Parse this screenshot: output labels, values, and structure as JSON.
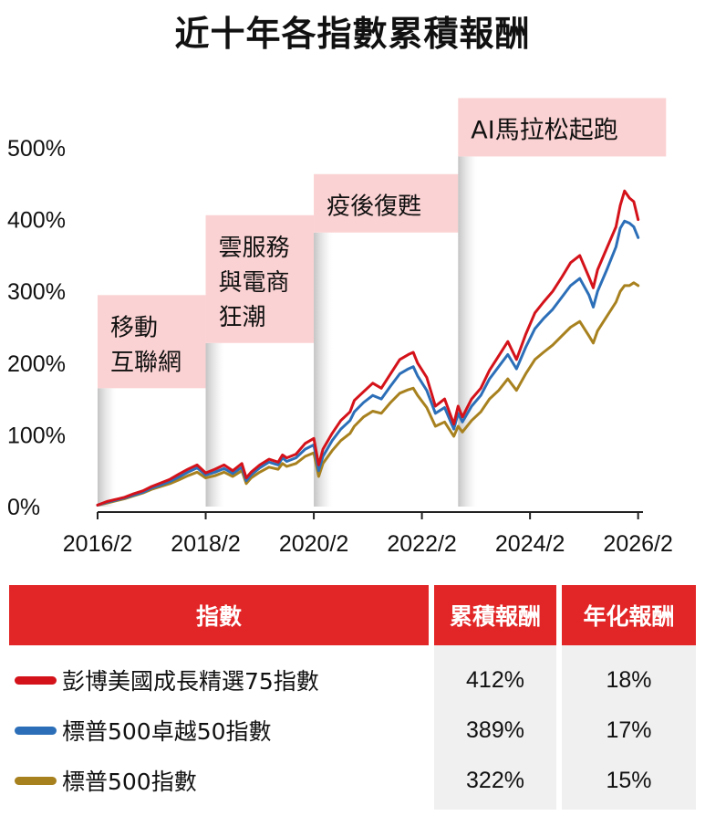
{
  "title": "近十年各指數累積報酬",
  "chart_data": {
    "type": "line",
    "title": "近十年各指數累積報酬",
    "xlabel": "",
    "ylabel": "",
    "x_ticks": [
      "2016/2",
      "2018/2",
      "2020/2",
      "2022/2",
      "2024/2",
      "2026/2"
    ],
    "y_ticks": [
      "0%",
      "100%",
      "200%",
      "300%",
      "400%",
      "500%"
    ],
    "xlim": [
      2016.08,
      2026.17
    ],
    "ylim": [
      0,
      500
    ],
    "y_unit": "%",
    "annotations": [
      {
        "lines": [
          "移動",
          "互聯網"
        ],
        "start": 2016.08,
        "end": 2018.08,
        "bottom_value": 165
      },
      {
        "lines": [
          "雲服務",
          "與電商",
          "狂潮"
        ],
        "start": 2018.08,
        "end": 2020.08,
        "bottom_value": 228
      },
      {
        "lines": [
          "疫後復甦"
        ],
        "start": 2020.08,
        "end": 2022.75,
        "bottom_value": 382
      },
      {
        "lines": [
          "AI馬拉松起跑"
        ],
        "start": 2022.75,
        "end": 2026.5,
        "bottom_value": 488
      }
    ],
    "series": [
      {
        "name": "彭博美國成長精選75指數",
        "color": "#d4121a",
        "x": [
          2016.08,
          2016.25,
          2016.42,
          2016.58,
          2016.75,
          2016.92,
          2017.08,
          2017.25,
          2017.42,
          2017.58,
          2017.75,
          2017.92,
          2018.08,
          2018.25,
          2018.42,
          2018.58,
          2018.75,
          2018.83,
          2018.92,
          2019.08,
          2019.25,
          2019.42,
          2019.5,
          2019.58,
          2019.75,
          2019.92,
          2020.08,
          2020.17,
          2020.25,
          2020.42,
          2020.58,
          2020.75,
          2020.83,
          2021.0,
          2021.17,
          2021.33,
          2021.5,
          2021.67,
          2021.83,
          2021.92,
          2022.0,
          2022.17,
          2022.33,
          2022.5,
          2022.67,
          2022.75,
          2022.83,
          2023.0,
          2023.17,
          2023.33,
          2023.5,
          2023.67,
          2023.83,
          2024.0,
          2024.17,
          2024.33,
          2024.5,
          2024.67,
          2024.83,
          2025.0,
          2025.17,
          2025.25,
          2025.33,
          2025.5,
          2025.67,
          2025.75,
          2025.83,
          2025.92,
          2026.0,
          2026.08
        ],
        "values": [
          2,
          7,
          10,
          13,
          18,
          22,
          28,
          33,
          38,
          45,
          52,
          58,
          47,
          52,
          58,
          50,
          60,
          40,
          48,
          58,
          66,
          62,
          72,
          68,
          73,
          88,
          95,
          58,
          80,
          102,
          120,
          132,
          148,
          160,
          172,
          165,
          185,
          205,
          212,
          215,
          200,
          180,
          140,
          150,
          115,
          140,
          125,
          150,
          165,
          190,
          210,
          230,
          205,
          240,
          270,
          285,
          300,
          320,
          340,
          350,
          320,
          305,
          330,
          360,
          390,
          420,
          440,
          430,
          425,
          400
        ]
      },
      {
        "name": "標普500卓越50指數",
        "color": "#2c6fb8",
        "x": [
          2016.08,
          2016.25,
          2016.42,
          2016.58,
          2016.75,
          2016.92,
          2017.08,
          2017.25,
          2017.42,
          2017.58,
          2017.75,
          2017.92,
          2018.08,
          2018.25,
          2018.42,
          2018.58,
          2018.75,
          2018.83,
          2018.92,
          2019.08,
          2019.25,
          2019.42,
          2019.5,
          2019.58,
          2019.75,
          2019.92,
          2020.08,
          2020.17,
          2020.25,
          2020.42,
          2020.58,
          2020.75,
          2020.83,
          2021.0,
          2021.17,
          2021.33,
          2021.5,
          2021.67,
          2021.83,
          2021.92,
          2022.0,
          2022.17,
          2022.33,
          2022.5,
          2022.67,
          2022.75,
          2022.83,
          2023.0,
          2023.17,
          2023.33,
          2023.5,
          2023.67,
          2023.83,
          2024.0,
          2024.17,
          2024.33,
          2024.5,
          2024.67,
          2024.83,
          2025.0,
          2025.17,
          2025.25,
          2025.33,
          2025.5,
          2025.67,
          2025.75,
          2025.83,
          2025.92,
          2026.0,
          2026.08
        ],
        "values": [
          2,
          6,
          9,
          12,
          16,
          20,
          26,
          30,
          35,
          41,
          48,
          54,
          44,
          48,
          53,
          46,
          55,
          36,
          44,
          54,
          62,
          58,
          68,
          63,
          68,
          80,
          86,
          50,
          70,
          92,
          108,
          120,
          132,
          145,
          155,
          150,
          168,
          185,
          192,
          195,
          182,
          162,
          130,
          138,
          108,
          130,
          118,
          140,
          155,
          178,
          195,
          212,
          192,
          222,
          248,
          262,
          275,
          292,
          308,
          318,
          295,
          278,
          300,
          330,
          362,
          388,
          398,
          395,
          390,
          375
        ]
      },
      {
        "name": "標普500指數",
        "color": "#a8811f",
        "x": [
          2016.08,
          2016.25,
          2016.42,
          2016.58,
          2016.75,
          2016.92,
          2017.08,
          2017.25,
          2017.42,
          2017.58,
          2017.75,
          2017.92,
          2018.08,
          2018.25,
          2018.42,
          2018.58,
          2018.75,
          2018.83,
          2018.92,
          2019.08,
          2019.25,
          2019.42,
          2019.5,
          2019.58,
          2019.75,
          2019.92,
          2020.08,
          2020.17,
          2020.25,
          2020.42,
          2020.58,
          2020.75,
          2020.83,
          2021.0,
          2021.17,
          2021.33,
          2021.5,
          2021.67,
          2021.83,
          2021.92,
          2022.0,
          2022.17,
          2022.33,
          2022.5,
          2022.67,
          2022.75,
          2022.83,
          2023.0,
          2023.17,
          2023.33,
          2023.5,
          2023.67,
          2023.83,
          2024.0,
          2024.17,
          2024.33,
          2024.5,
          2024.67,
          2024.83,
          2025.0,
          2025.17,
          2025.25,
          2025.33,
          2025.5,
          2025.67,
          2025.75,
          2025.83,
          2025.92,
          2026.0,
          2026.08
        ],
        "values": [
          2,
          5,
          8,
          11,
          15,
          19,
          24,
          28,
          32,
          37,
          43,
          48,
          40,
          43,
          48,
          42,
          50,
          32,
          40,
          48,
          55,
          52,
          60,
          56,
          60,
          70,
          75,
          42,
          60,
          78,
          92,
          102,
          112,
          125,
          133,
          130,
          145,
          158,
          163,
          165,
          155,
          138,
          112,
          118,
          98,
          112,
          104,
          120,
          132,
          150,
          162,
          178,
          162,
          185,
          205,
          215,
          225,
          238,
          250,
          258,
          238,
          228,
          245,
          265,
          285,
          300,
          308,
          308,
          312,
          308
        ]
      }
    ]
  },
  "table": {
    "headers": [
      "指數",
      "累積報酬",
      "年化報酬"
    ],
    "rows": [
      {
        "name": "彭博美國成長精選75指數",
        "color": "#d4121a",
        "cumulative": "412%",
        "annual": "18%"
      },
      {
        "name": "標普500卓越50指數",
        "color": "#2c6fb8",
        "cumulative": "389%",
        "annual": "17%"
      },
      {
        "name": "標普500指數",
        "color": "#a8811f",
        "cumulative": "322%",
        "annual": "15%"
      }
    ]
  }
}
